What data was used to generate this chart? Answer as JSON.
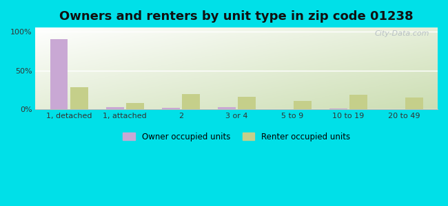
{
  "title": "Owners and renters by unit type in zip code 01238",
  "categories": [
    "1, detached",
    "1, attached",
    "2",
    "3 or 4",
    "5 to 9",
    "10 to 19",
    "20 to 49"
  ],
  "owner_values": [
    90,
    3,
    2,
    3,
    0,
    1,
    0
  ],
  "renter_values": [
    28,
    8,
    20,
    16,
    11,
    19,
    15
  ],
  "owner_color": "#c9a8d4",
  "renter_color": "#c5cf8a",
  "background_outer": "#00e0e8",
  "title_fontsize": 13,
  "yticks": [
    0,
    50,
    100
  ],
  "ytick_labels": [
    "0%",
    "50%",
    "100%"
  ],
  "ylim": [
    0,
    105
  ],
  "legend_owner": "Owner occupied units",
  "legend_renter": "Renter occupied units",
  "watermark": "City-Data.com",
  "bar_width": 0.32,
  "bar_gap": 0.04
}
